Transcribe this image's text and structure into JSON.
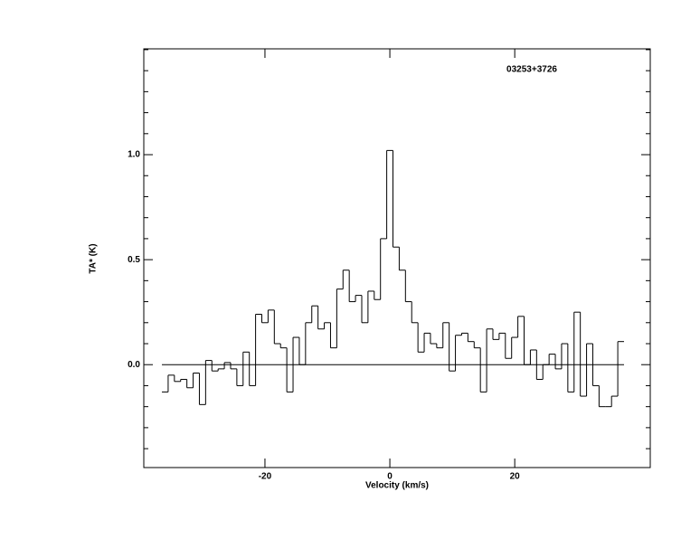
{
  "chart_data": {
    "type": "step",
    "title": "03253+3726",
    "xlabel": "Velocity (km/s)",
    "ylabel": "TA* (K)",
    "x": [
      -36,
      -35,
      -34,
      -33,
      -32,
      -31,
      -30,
      -29,
      -28,
      -27,
      -26,
      -25,
      -24,
      -23,
      -22,
      -21,
      -20,
      -19,
      -18,
      -17,
      -16,
      -15,
      -14,
      -13,
      -12,
      -11,
      -10,
      -9,
      -8,
      -7,
      -6,
      -5,
      -4,
      -3,
      -2,
      -1,
      0,
      1,
      2,
      3,
      4,
      5,
      6,
      7,
      8,
      9,
      10,
      11,
      12,
      13,
      14,
      15,
      16,
      17,
      18,
      19,
      20,
      21,
      22,
      23,
      24,
      25,
      26,
      27,
      28,
      29,
      30,
      31,
      32,
      33,
      34,
      35,
      36,
      37
    ],
    "values": [
      -0.13,
      -0.05,
      -0.08,
      -0.07,
      -0.11,
      -0.04,
      -0.19,
      0.02,
      -0.03,
      -0.02,
      0.01,
      -0.02,
      -0.1,
      0.06,
      -0.1,
      0.24,
      0.2,
      0.26,
      0.1,
      0.08,
      -0.13,
      0.13,
      0.0,
      0.2,
      0.28,
      0.17,
      0.2,
      0.08,
      0.36,
      0.45,
      0.3,
      0.33,
      0.2,
      0.35,
      0.31,
      0.6,
      1.02,
      0.56,
      0.45,
      0.3,
      0.2,
      0.06,
      0.15,
      0.1,
      0.08,
      0.2,
      -0.03,
      0.14,
      0.15,
      0.11,
      0.08,
      -0.13,
      0.17,
      0.12,
      0.15,
      0.03,
      0.13,
      0.23,
      0.0,
      0.07,
      -0.07,
      0.0,
      0.05,
      -0.02,
      0.1,
      -0.13,
      0.25,
      -0.15,
      0.1,
      -0.1,
      -0.2,
      -0.2,
      -0.15,
      0.11
    ],
    "color": "#000000",
    "xlim": [
      -39.4,
      41.7
    ],
    "xticks": [
      -20,
      0,
      20
    ],
    "ylim": [
      -0.49,
      1.504
    ],
    "yticks": [
      {
        "value": 0,
        "label": "0.0"
      },
      0.5,
      {
        "value": 1,
        "label": "1.0"
      }
    ],
    "yminorticks": [
      -0.4,
      -0.3,
      -0.2,
      -0.1,
      0.1,
      0.2,
      0.3,
      0.4,
      0.6,
      0.7,
      0.8,
      0.9,
      1.1,
      1.2,
      1.3,
      1.4,
      1.5
    ],
    "zero_line": true
  }
}
